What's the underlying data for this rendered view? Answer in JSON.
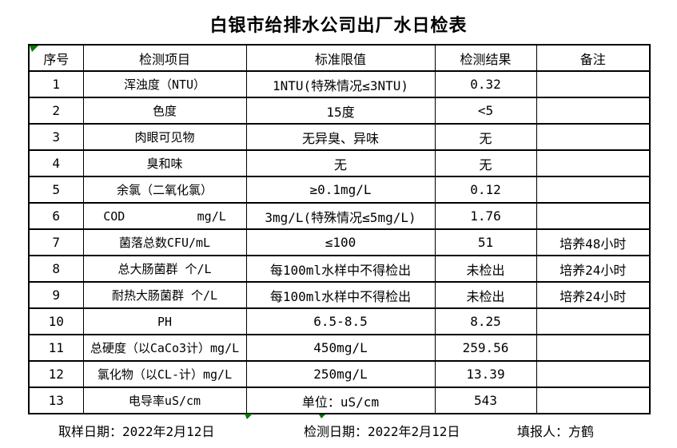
{
  "title": "白银市给排水公司出厂水日检表",
  "table": {
    "headers": [
      "序号",
      "检测项目",
      "标准限值",
      "检测结果",
      "备注"
    ],
    "rows": [
      {
        "no": "1",
        "item": "浑浊度（NTU）",
        "limit": "1NTU(特殊情况≤3NTU)",
        "result": "0.32",
        "remark": ""
      },
      {
        "no": "2",
        "item": "色度",
        "limit": "15度",
        "result": "<5",
        "remark": ""
      },
      {
        "no": "3",
        "item": "肉眼可见物",
        "limit": "无异臭、异味",
        "result": "无",
        "remark": ""
      },
      {
        "no": "4",
        "item": "臭和味",
        "limit": "无",
        "result": "无",
        "remark": ""
      },
      {
        "no": "5",
        "item": "余氯（二氧化氯）",
        "limit": "≥0.1mg/L",
        "result": "0.12",
        "remark": ""
      },
      {
        "no": "6",
        "item": "COD          mg/L",
        "limit": "3mg/L(特殊情况≤5mg/L)",
        "result": "1.76",
        "remark": ""
      },
      {
        "no": "7",
        "item": "菌落总数CFU/mL",
        "limit": "≤100",
        "result": "51",
        "remark": "培养48小时"
      },
      {
        "no": "8",
        "item": "总大肠菌群 个/L",
        "limit": "每100ml水样中不得检出",
        "result": "未检出",
        "remark": "培养24小时"
      },
      {
        "no": "9",
        "item": "耐热大肠菌群 个/L",
        "limit": "每100ml水样中不得检出",
        "result": "未检出",
        "remark": "培养24小时"
      },
      {
        "no": "10",
        "item": "PH",
        "limit": "6.5-8.5",
        "result": "8.25",
        "remark": ""
      },
      {
        "no": "11",
        "item": "总硬度（以CaCo3计）mg/L",
        "limit": "450mg/L",
        "result": "259.56",
        "remark": ""
      },
      {
        "no": "12",
        "item": "氯化物（以CL-计）mg/L",
        "limit": "250mg/L",
        "result": "13.39",
        "remark": ""
      },
      {
        "no": "13",
        "item": "电导率uS/cm",
        "limit": "单位：uS/cm",
        "result": "543",
        "remark": ""
      }
    ]
  },
  "footer": {
    "sample_date": "取样日期：2022年2月12日",
    "test_date": "检测日期：2022年2月12日",
    "reporter": "填报人：方鹤"
  },
  "colors": {
    "marker_green": "#007a00",
    "border_black": "#000000",
    "background": "#ffffff"
  }
}
